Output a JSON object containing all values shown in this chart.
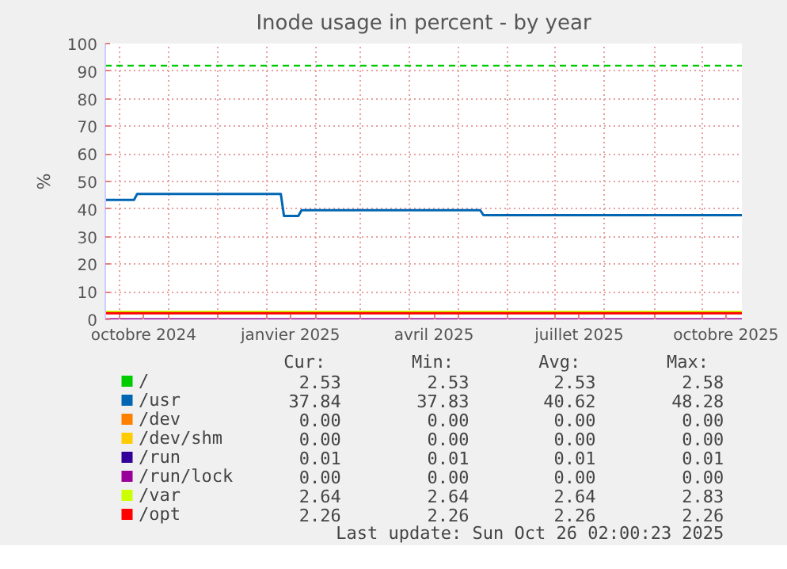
{
  "chart_data": {
    "type": "line",
    "title": "Inode usage in percent - by year",
    "ylabel": "%",
    "x": [
      "2024-09-22",
      "2024-10-10",
      "2024-10-12",
      "2025-01-10",
      "2025-01-12",
      "2025-01-21",
      "2025-01-23",
      "2025-05-15",
      "2025-05-17",
      "2025-10-26"
    ],
    "series": [
      {
        "name": "/",
        "color": "#00cc00",
        "values": [
          null,
          null,
          null,
          null,
          null,
          null,
          null,
          null,
          null,
          null
        ]
      },
      {
        "name": "/usr",
        "color": "#0066b3",
        "values": [
          43.3,
          43.3,
          45.5,
          45.5,
          37.5,
          37.5,
          39.6,
          39.6,
          37.8,
          37.8
        ]
      },
      {
        "name": "/dev",
        "color": "#ff8000",
        "values": [
          null,
          null,
          null,
          null,
          null,
          null,
          null,
          null,
          null,
          null
        ]
      },
      {
        "name": "/dev/shm",
        "color": "#ffcc00",
        "values": [
          null,
          null,
          null,
          null,
          null,
          null,
          null,
          null,
          null,
          null
        ]
      },
      {
        "name": "/run",
        "color": "#330099",
        "values": [
          null,
          null,
          null,
          null,
          null,
          null,
          null,
          null,
          null,
          null
        ]
      },
      {
        "name": "/run/lock",
        "color": "#990099",
        "values": [
          0,
          0,
          0,
          0,
          0,
          0,
          0,
          0,
          0,
          0
        ]
      },
      {
        "name": "/var",
        "color": "#ccff00",
        "values": [
          2.7,
          2.7,
          2.7,
          2.7,
          2.7,
          2.7,
          2.7,
          2.7,
          2.7,
          2.7
        ]
      },
      {
        "name": "/opt",
        "color": "#ff0000",
        "values": [
          2.2,
          2.2,
          2.2,
          2.2,
          2.2,
          2.2,
          2.2,
          2.2,
          2.2,
          2.2
        ]
      }
    ],
    "xlim": [
      "2024-09-22",
      "2025-10-26"
    ],
    "ylim": [
      0,
      100
    ],
    "xticks": [
      {
        "value": "2024-10-01",
        "label": null
      },
      {
        "value": "2024-10-16",
        "label": "octobre 2024"
      },
      {
        "value": "2024-11-01",
        "label": null
      },
      {
        "value": "2024-12-01",
        "label": null
      },
      {
        "value": "2025-01-01",
        "label": null
      },
      {
        "value": "2025-01-16",
        "label": "janvier 2025"
      },
      {
        "value": "2025-02-01",
        "label": null
      },
      {
        "value": "2025-03-01",
        "label": null
      },
      {
        "value": "2025-04-01",
        "label": null
      },
      {
        "value": "2025-04-16",
        "label": "avril 2025"
      },
      {
        "value": "2025-05-01",
        "label": null
      },
      {
        "value": "2025-06-01",
        "label": null
      },
      {
        "value": "2025-07-01",
        "label": null
      },
      {
        "value": "2025-07-16",
        "label": "juillet 2025"
      },
      {
        "value": "2025-08-01",
        "label": null
      },
      {
        "value": "2025-09-01",
        "label": null
      },
      {
        "value": "2025-10-01",
        "label": null
      },
      {
        "value": "2025-10-16",
        "label": "octobre 2025"
      }
    ],
    "yticks": [
      0,
      10,
      20,
      30,
      40,
      50,
      60,
      70,
      80,
      90,
      100
    ],
    "grid": true,
    "legend": "bottom",
    "line_style": "solid",
    "ref_lines": [
      {
        "axis": "y",
        "value": 92,
        "label": null,
        "color": "#00cc00",
        "line_style": "dashed"
      }
    ],
    "annotations": [
      "Cur:",
      "Min:",
      "Avg:",
      "Max:",
      "2.53",
      "2.53",
      "2.53",
      "2.58",
      "37.84",
      "37.83",
      "40.62",
      "48.28",
      "0.00",
      "0.00",
      "0.00",
      "0.00",
      "0.00",
      "0.00",
      "0.00",
      "0.00",
      "0.01",
      "0.01",
      "0.01",
      "0.01",
      "0.00",
      "0.00",
      "0.00",
      "0.00",
      "2.64",
      "2.64",
      "2.64",
      "2.83",
      "2.26",
      "2.26",
      "2.26",
      "2.26",
      "Last update: Sun Oct 26 02:00:23 2025"
    ]
  }
}
